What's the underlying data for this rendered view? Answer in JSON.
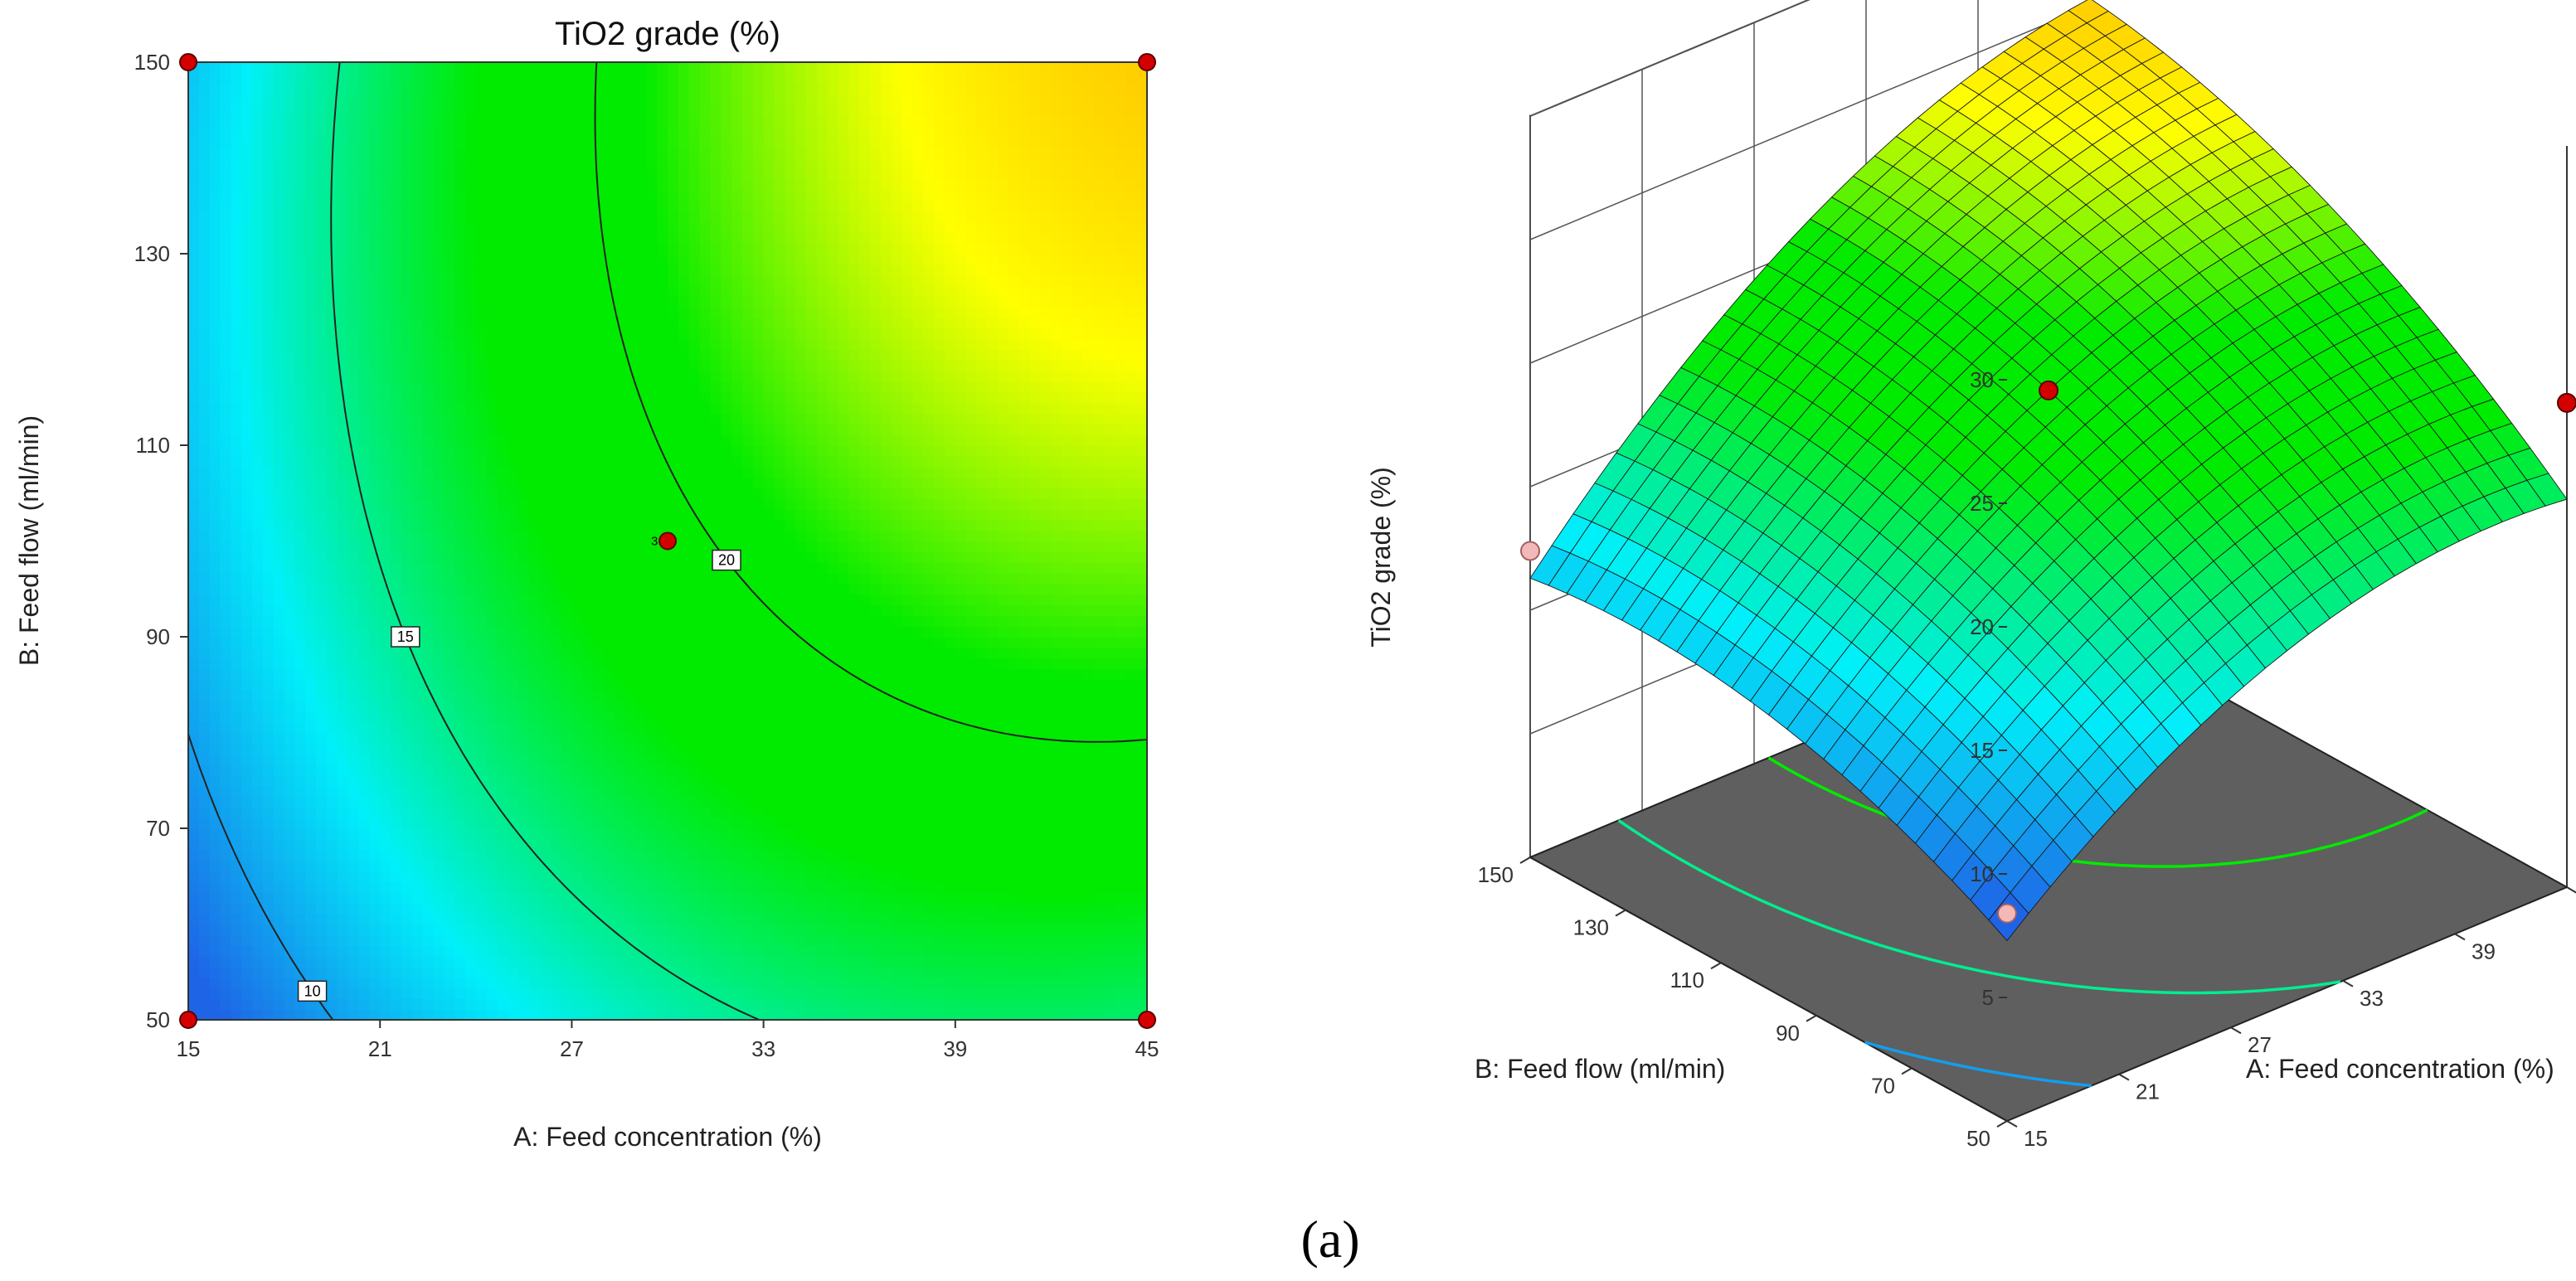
{
  "figure_label": "(a)",
  "chart_data": [
    {
      "type": "heatmap",
      "title": "TiO2 grade (%)",
      "xlabel": "A: Feed concentration (%)",
      "ylabel": "B: Feed flow (ml/min)",
      "xlim": [
        15,
        45
      ],
      "ylim": [
        50,
        150
      ],
      "xticks": [
        "15",
        "21",
        "27",
        "33",
        "39",
        "45"
      ],
      "yticks": [
        "50",
        "70",
        "90",
        "110",
        "130",
        "150"
      ],
      "contour_levels": [
        10,
        15,
        20
      ],
      "contour_labels": [
        "10",
        "15",
        "20"
      ],
      "design_points": [
        {
          "x": 15,
          "y": 150,
          "label": ""
        },
        {
          "x": 45,
          "y": 150,
          "label": ""
        },
        {
          "x": 15,
          "y": 50,
          "label": ""
        },
        {
          "x": 45,
          "y": 50,
          "label": ""
        },
        {
          "x": 30,
          "y": 100,
          "label": "3"
        }
      ],
      "response_range": [
        8,
        30
      ]
    },
    {
      "type": "surface3d",
      "zlabel": "TiO2 grade (%)",
      "xlabel": "A: Feed concentration (%)",
      "ylabel": "B: Feed flow (ml/min)",
      "xlim": [
        15,
        45
      ],
      "ylim": [
        50,
        150
      ],
      "zlim": [
        0,
        30
      ],
      "xticks": [
        "15",
        "21",
        "27",
        "33",
        "39",
        "45"
      ],
      "yticks": [
        "50",
        "70",
        "90",
        "110",
        "130",
        "150"
      ],
      "zticks": [
        "5",
        "10",
        "15",
        "20",
        "25",
        "30"
      ],
      "floor_contours": [
        10,
        15,
        20,
        25
      ],
      "design_points": [
        {
          "x": 45,
          "y": 150,
          "z": 29.5,
          "above": true
        },
        {
          "x": 30,
          "y": 100,
          "z": 19.5,
          "above": true
        },
        {
          "x": 45,
          "y": 50,
          "z": 19.6,
          "above": true
        },
        {
          "x": 15,
          "y": 150,
          "z": 12.4,
          "above": false
        },
        {
          "x": 15,
          "y": 50,
          "z": 8.4,
          "above": false
        }
      ]
    }
  ]
}
